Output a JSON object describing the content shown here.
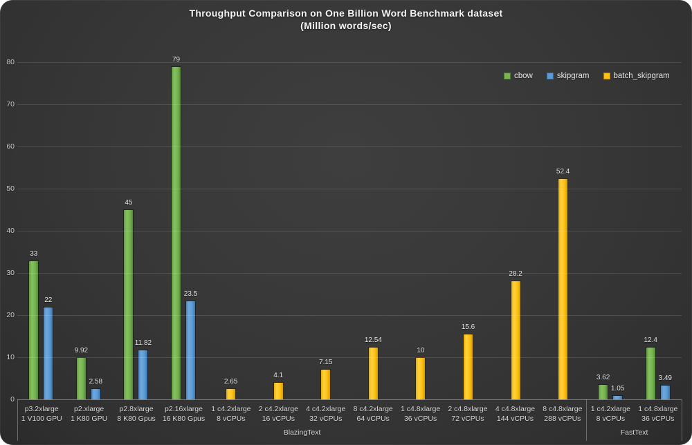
{
  "chart_data": {
    "type": "bar",
    "title": "Throughput Comparison on One Billion Word Benchmark dataset",
    "subtitle": "(Million words/sec)",
    "ylim": [
      0,
      80
    ],
    "ytick_step": 10,
    "grid": true,
    "legend_position": "top-right",
    "series": [
      {
        "name": "cbow",
        "color": "#76b450"
      },
      {
        "name": "skipgram",
        "color": "#5b9bd5"
      },
      {
        "name": "batch_skipgram",
        "color": "#ffc011"
      }
    ],
    "groups": [
      {
        "label": "BlazingText",
        "categories": [
          {
            "instance": "p3.2xlarge",
            "hardware": "1 V100 GPU",
            "values": {
              "cbow": 33,
              "skipgram": 22
            }
          },
          {
            "instance": "p2.xlarge",
            "hardware": "1 K80 GPU",
            "values": {
              "cbow": 9.92,
              "skipgram": 2.58
            }
          },
          {
            "instance": "p2.8xlarge",
            "hardware": "8 K80 Gpus",
            "values": {
              "cbow": 45,
              "skipgram": 11.82
            }
          },
          {
            "instance": "p2.16xlarge",
            "hardware": "16 K80 Gpus",
            "values": {
              "cbow": 79,
              "skipgram": 23.5
            }
          },
          {
            "instance": "1 c4.2xlarge",
            "hardware": "8 vCPUs",
            "values": {
              "batch_skipgram": 2.65
            }
          },
          {
            "instance": "2 c4.2xlarge",
            "hardware": "16 vCPUs",
            "values": {
              "batch_skipgram": 4.1
            }
          },
          {
            "instance": "4 c4.2xlarge",
            "hardware": "32 vCPUs",
            "values": {
              "batch_skipgram": 7.15
            }
          },
          {
            "instance": "8 c4.2xlarge",
            "hardware": "64 vCPUs",
            "values": {
              "batch_skipgram": 12.54
            }
          },
          {
            "instance": "1 c4.8xlarge",
            "hardware": "36 vCPUs",
            "values": {
              "batch_skipgram": 10
            }
          },
          {
            "instance": "2 c4.8xlarge",
            "hardware": "72 vCPUs",
            "values": {
              "batch_skipgram": 15.6
            }
          },
          {
            "instance": "4 c4.8xlarge",
            "hardware": "144 vCPUs",
            "values": {
              "batch_skipgram": 28.2
            }
          },
          {
            "instance": "8 c4.8xlarge",
            "hardware": "288 vCPUs",
            "values": {
              "batch_skipgram": 52.4
            }
          }
        ]
      },
      {
        "label": "FastText",
        "categories": [
          {
            "instance": "1 c4.2xlarge",
            "hardware": "8 vCPUs",
            "values": {
              "cbow": 3.62,
              "skipgram": 1.05
            }
          },
          {
            "instance": "1 c4.8xlarge",
            "hardware": "36 vCPUs",
            "values": {
              "cbow": 12.4,
              "skipgram": 3.49
            }
          }
        ]
      }
    ]
  }
}
